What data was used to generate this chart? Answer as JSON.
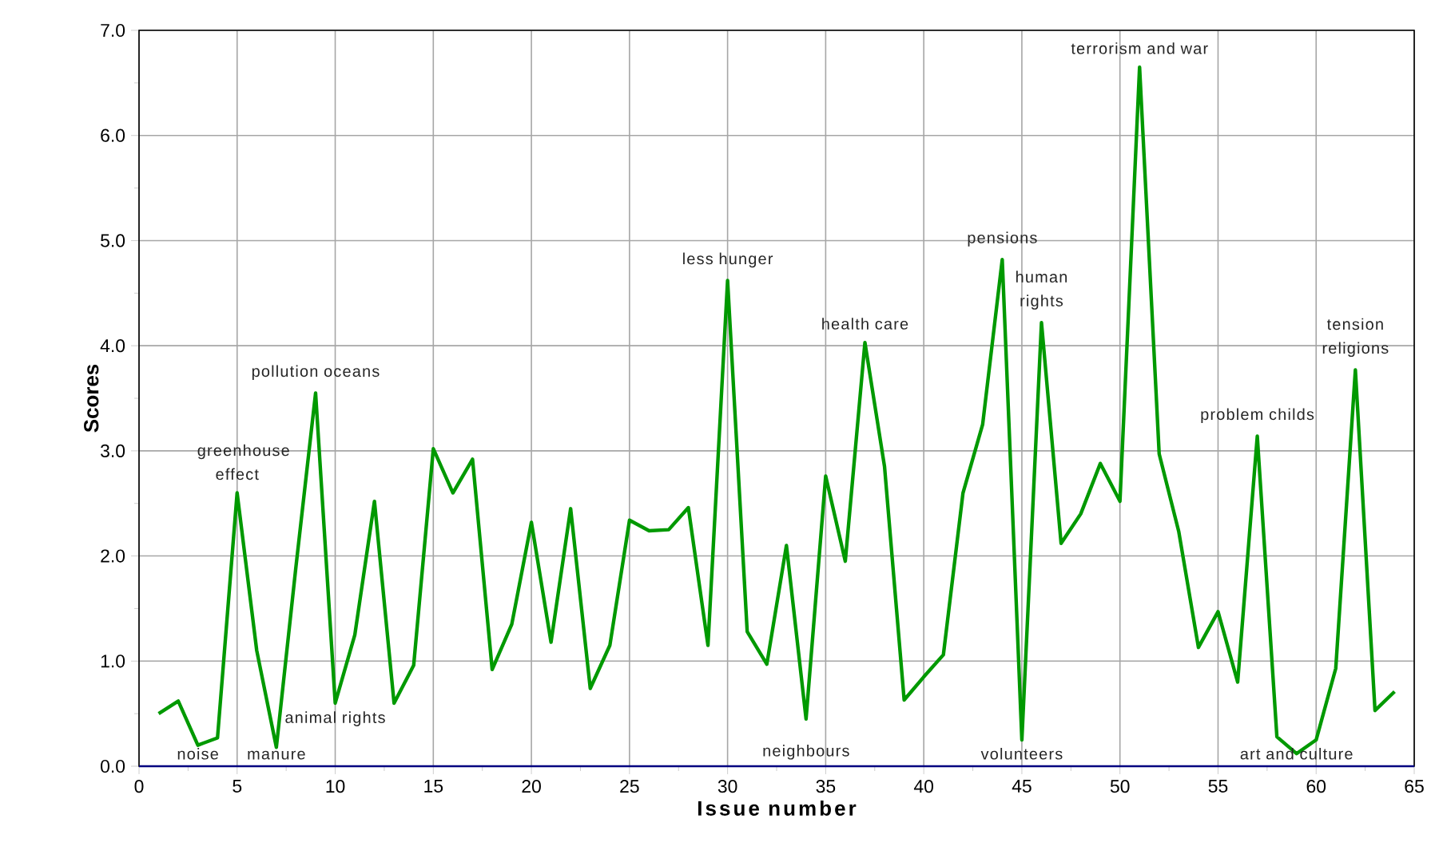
{
  "chart_data": {
    "type": "line",
    "xlabel": "Issue number",
    "ylabel": "Scores",
    "x": [
      1,
      2,
      3,
      4,
      5,
      6,
      7,
      8,
      9,
      10,
      11,
      12,
      13,
      14,
      15,
      16,
      17,
      18,
      19,
      20,
      21,
      22,
      23,
      24,
      25,
      26,
      27,
      28,
      29,
      30,
      31,
      32,
      33,
      34,
      35,
      36,
      37,
      38,
      39,
      40,
      41,
      42,
      43,
      44,
      45,
      46,
      47,
      48,
      49,
      50,
      51,
      52,
      53,
      54,
      55,
      56,
      57,
      58,
      59,
      60,
      61,
      62,
      63,
      64
    ],
    "series": [
      {
        "color": "#009900",
        "values": [
          0.5,
          0.62,
          0.2,
          0.27,
          2.6,
          1.1,
          0.18,
          1.9,
          3.55,
          0.6,
          1.25,
          2.52,
          0.6,
          0.96,
          3.02,
          2.6,
          2.92,
          0.92,
          1.35,
          2.32,
          1.18,
          2.45,
          0.74,
          1.15,
          2.34,
          2.24,
          2.25,
          2.46,
          1.15,
          4.62,
          1.28,
          0.97,
          2.1,
          0.45,
          2.76,
          1.95,
          4.03,
          2.85,
          0.63,
          0.85,
          1.06,
          2.6,
          3.25,
          4.82,
          0.25,
          4.22,
          2.12,
          2.4,
          2.88,
          2.52,
          6.65,
          2.97,
          2.23,
          1.13,
          1.47,
          0.8,
          3.14,
          0.28,
          0.12,
          0.25,
          0.93,
          3.77,
          0.53,
          0.71
        ]
      }
    ],
    "xlim": [
      0,
      65
    ],
    "xticks": [
      0,
      5,
      10,
      15,
      20,
      25,
      30,
      35,
      40,
      45,
      50,
      55,
      60,
      65
    ],
    "ylim": [
      0,
      7
    ],
    "yticks": [
      {
        "value": 0,
        "label": "0.0"
      },
      {
        "value": 1,
        "label": "1.0"
      },
      {
        "value": 2,
        "label": "2.0"
      },
      {
        "value": 3,
        "label": "3.0"
      },
      {
        "value": 4,
        "label": "4.0"
      },
      {
        "value": 5,
        "label": "5.0"
      },
      {
        "value": 6,
        "label": "6.0"
      },
      {
        "value": 7,
        "label": "7.0"
      }
    ],
    "grid": true,
    "marker": "none",
    "line_style": "solid",
    "annotations": [
      {
        "text": "greenhouse effect",
        "x": 5,
        "y": 2.6
      },
      {
        "text": "pollution oceans",
        "x": 9,
        "y": 3.55
      },
      {
        "text": "noise",
        "x": 3,
        "y": 0.2
      },
      {
        "text": "manure",
        "x": 7,
        "y": 0.18
      },
      {
        "text": "animal rights",
        "x": 10,
        "y": 0.6
      },
      {
        "text": "less hunger",
        "x": 30,
        "y": 4.62
      },
      {
        "text": "health care",
        "x": 37,
        "y": 4.03
      },
      {
        "text": "neighbours",
        "x": 34,
        "y": 0.45
      },
      {
        "text": "pensions",
        "x": 44,
        "y": 4.82
      },
      {
        "text": "human rights",
        "x": 46,
        "y": 4.22
      },
      {
        "text": "volunteers",
        "x": 45,
        "y": 0.25
      },
      {
        "text": "terrorism and war",
        "x": 51,
        "y": 6.65
      },
      {
        "text": "problem childs",
        "x": 57,
        "y": 3.14
      },
      {
        "text": "tension religions",
        "x": 62,
        "y": 3.77
      },
      {
        "text": "art and culture",
        "x": 59,
        "y": 0.12
      }
    ]
  }
}
